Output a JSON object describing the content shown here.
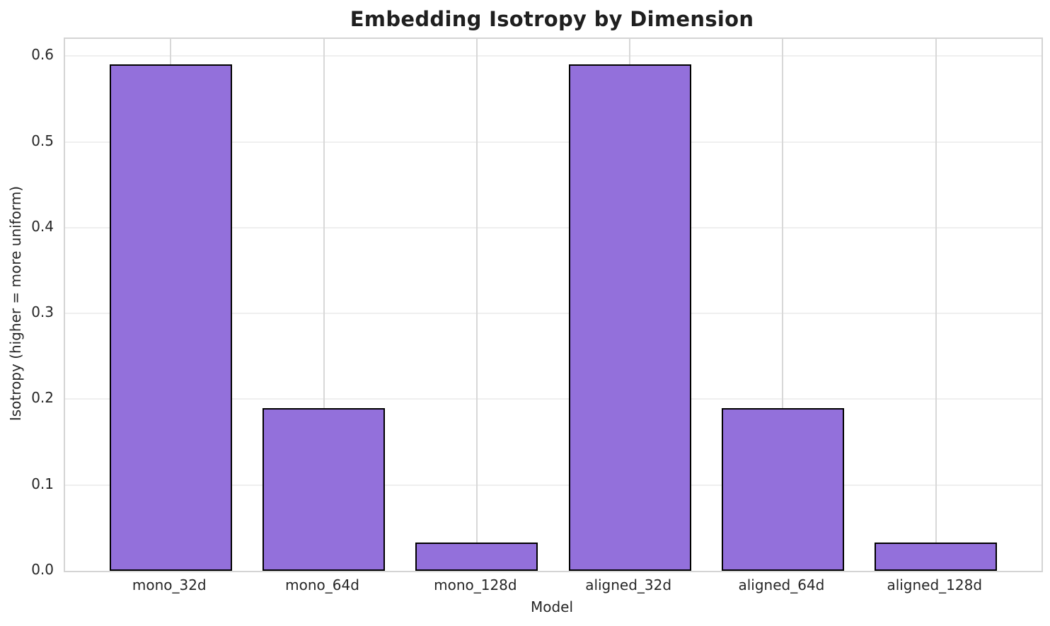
{
  "chart_data": {
    "type": "bar",
    "title": "Embedding Isotropy by Dimension",
    "xlabel": "Model",
    "ylabel": "Isotropy (higher = more uniform)",
    "categories": [
      "mono_32d",
      "mono_64d",
      "mono_128d",
      "aligned_32d",
      "aligned_64d",
      "aligned_128d"
    ],
    "values": [
      0.59,
      0.19,
      0.033,
      0.59,
      0.19,
      0.033
    ],
    "ylim": [
      0,
      0.62
    ],
    "yticks": [
      0.0,
      0.1,
      0.2,
      0.3,
      0.4,
      0.5,
      0.6
    ],
    "ytick_labels": [
      "0.0",
      "0.1",
      "0.2",
      "0.3",
      "0.4",
      "0.5",
      "0.6"
    ],
    "grid": true,
    "legend": null,
    "bar_fill_color": "#9370DB",
    "bar_edge_color": "#000000",
    "grid_h_color": "#efefef",
    "grid_v_color": "#d8d8d8",
    "spine_color": "#d4d4d4",
    "text_color": "#262626",
    "background_color": "#ffffff"
  }
}
